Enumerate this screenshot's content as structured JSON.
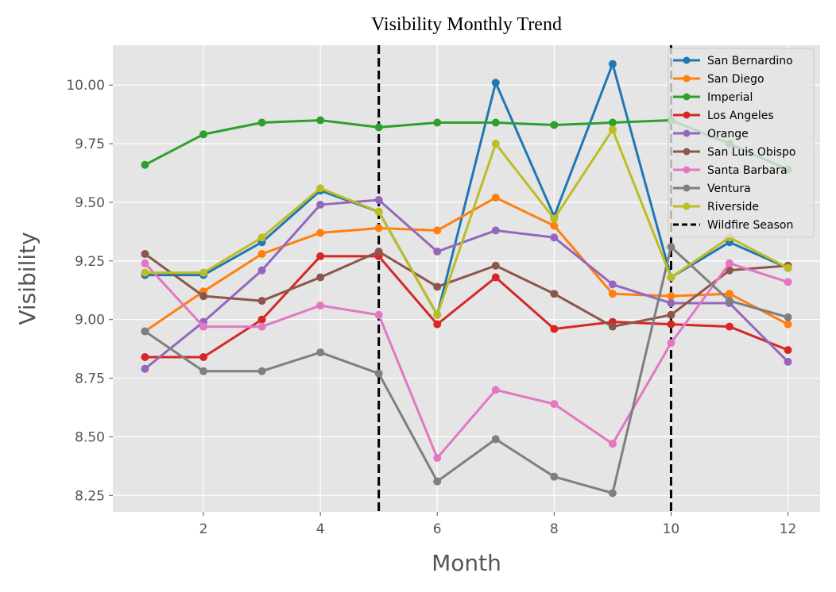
{
  "chart_data": {
    "type": "line",
    "title": "Visibility Monthly Trend",
    "xlabel": "Month",
    "ylabel": "Visibility",
    "x": [
      1,
      2,
      3,
      4,
      5,
      6,
      7,
      8,
      9,
      10,
      11,
      12
    ],
    "xlim": [
      0.45,
      12.55
    ],
    "ylim": [
      8.18,
      10.17
    ],
    "xticks": [
      2,
      4,
      6,
      8,
      10,
      12
    ],
    "yticks": [
      8.25,
      8.5,
      8.75,
      9.0,
      9.25,
      9.5,
      9.75,
      10.0
    ],
    "ytick_labels": [
      "8.25",
      "8.50",
      "8.75",
      "9.00",
      "9.25",
      "9.50",
      "9.75",
      "10.00"
    ],
    "grid": true,
    "legend_position": "top-right",
    "series": [
      {
        "name": "San Bernardino",
        "color": "#1f77b4",
        "values": [
          9.19,
          9.19,
          9.33,
          9.55,
          9.46,
          9.02,
          10.01,
          9.44,
          10.09,
          9.18,
          9.33,
          9.22
        ]
      },
      {
        "name": "San Diego",
        "color": "#ff7f0e",
        "values": [
          8.95,
          9.12,
          9.28,
          9.37,
          9.39,
          9.38,
          9.52,
          9.4,
          9.11,
          9.1,
          9.11,
          8.98
        ]
      },
      {
        "name": "Imperial",
        "color": "#2ca02c",
        "values": [
          9.66,
          9.79,
          9.84,
          9.85,
          9.82,
          9.84,
          9.84,
          9.83,
          9.84,
          9.85,
          9.75,
          9.64
        ]
      },
      {
        "name": "Los Angeles",
        "color": "#d62728",
        "values": [
          8.84,
          8.84,
          9.0,
          9.27,
          9.27,
          8.98,
          9.18,
          8.96,
          8.99,
          8.98,
          8.97,
          8.87
        ]
      },
      {
        "name": "Orange",
        "color": "#9467bd",
        "values": [
          8.79,
          8.99,
          9.21,
          9.49,
          9.51,
          9.29,
          9.38,
          9.35,
          9.15,
          9.07,
          9.07,
          8.82
        ]
      },
      {
        "name": "San Luis Obispo",
        "color": "#8c564b",
        "values": [
          9.28,
          9.1,
          9.08,
          9.18,
          9.29,
          9.14,
          9.23,
          9.11,
          8.97,
          9.02,
          9.21,
          9.23
        ]
      },
      {
        "name": "Santa Barbara",
        "color": "#e377c2",
        "values": [
          9.24,
          8.97,
          8.97,
          9.06,
          9.02,
          8.41,
          8.7,
          8.64,
          8.47,
          8.9,
          9.24,
          9.16
        ]
      },
      {
        "name": "Ventura",
        "color": "#7f7f7f",
        "values": [
          8.95,
          8.78,
          8.78,
          8.86,
          8.77,
          8.31,
          8.49,
          8.33,
          8.26,
          9.31,
          9.08,
          9.01
        ]
      },
      {
        "name": "Riverside",
        "color": "#bcbd22",
        "values": [
          9.2,
          9.2,
          9.35,
          9.56,
          9.46,
          9.02,
          9.75,
          9.43,
          9.81,
          9.18,
          9.35,
          9.22
        ]
      }
    ],
    "vlines": [
      {
        "x": 5,
        "color": "#000000",
        "style": "dashed",
        "label": "Wildfire Season"
      },
      {
        "x": 10,
        "color": "#000000",
        "style": "dashed",
        "label": ""
      }
    ],
    "legend_entries": [
      "San Bernardino",
      "San Diego",
      "Imperial",
      "Los Angeles",
      "Orange",
      "San Luis Obispo",
      "Santa Barbara",
      "Ventura",
      "Riverside",
      "Wildfire Season"
    ]
  }
}
